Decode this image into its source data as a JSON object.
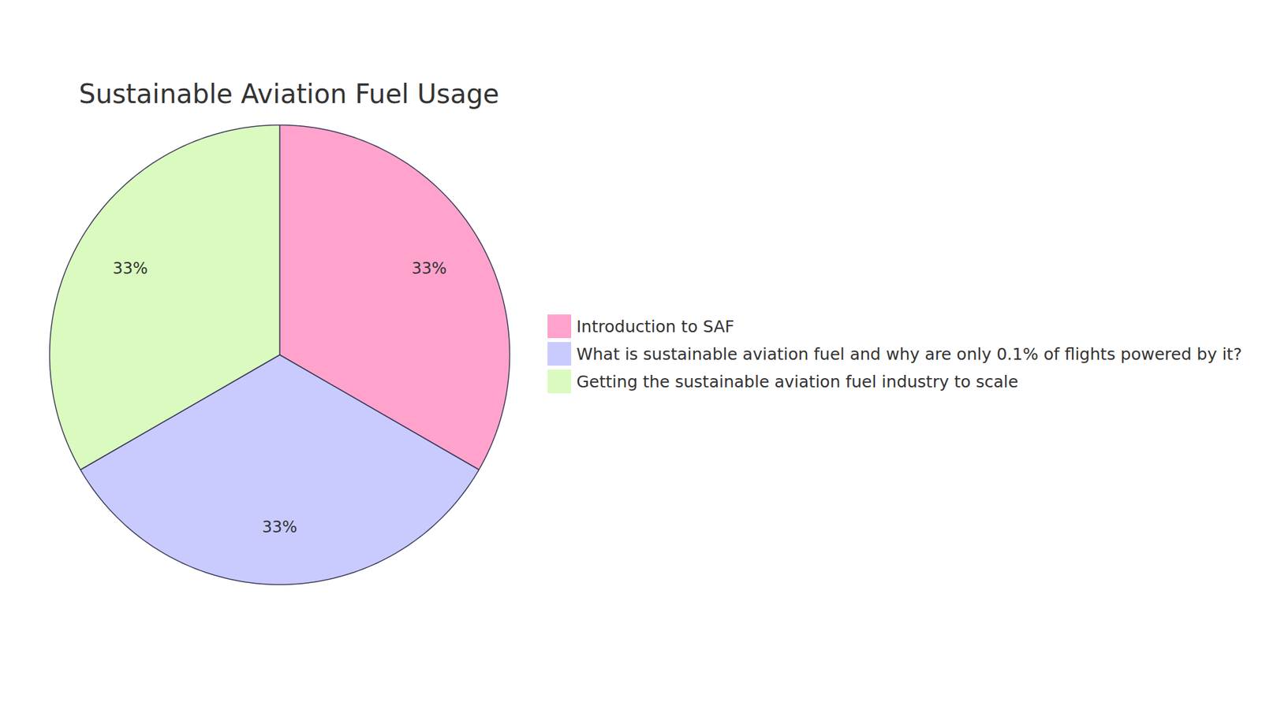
{
  "chart_data": {
    "type": "pie",
    "title": "Sustainable Aviation Fuel Usage",
    "categories": [
      "Introduction to SAF",
      "What is sustainable aviation fuel and why are only 0.1% of flights powered by it?",
      "Getting the sustainable aviation fuel industry to scale"
    ],
    "values": [
      33,
      33,
      33
    ],
    "value_labels": [
      "33%",
      "33%",
      "33%"
    ],
    "colors": [
      "#ffa3cd",
      "#c9cbff",
      "#dafac0"
    ],
    "data_labels": true,
    "legend": "right"
  }
}
